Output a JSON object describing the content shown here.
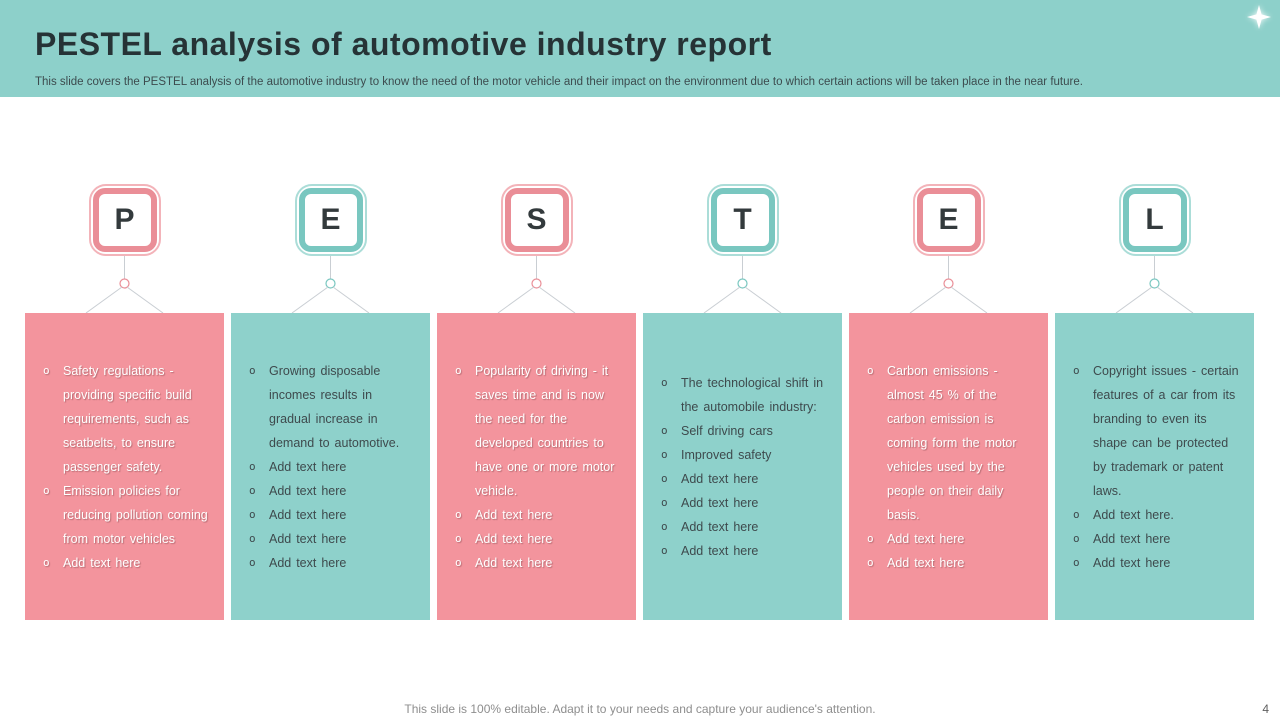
{
  "header": {
    "title": "PESTEL analysis of automotive industry report",
    "subtitle": "This slide covers the PESTEL analysis of the automotive industry to know the need of the motor vehicle and their impact on the environment due to which certain actions will be taken place in the near future."
  },
  "colors": {
    "header_bg": "#8dd0ca",
    "teal_card": "#8ed1cb",
    "pink_card": "#f3949d",
    "pink_accent": "#ea8e97",
    "teal_accent": "#79c7c0",
    "connector_line": "#c9ced3"
  },
  "columns": [
    {
      "letter": "P",
      "accent": "pink",
      "bullets": [
        "Safety regulations - providing specific build requirements, such as seatbelts, to ensure passenger safety.",
        "Emission policies for reducing pollution coming from motor vehicles",
        "Add text here"
      ]
    },
    {
      "letter": "E",
      "accent": "teal",
      "bullets": [
        "Growing disposable incomes results in gradual increase in demand to automotive.",
        "Add text here",
        "Add text here",
        "Add text here",
        "Add text here",
        "Add text here"
      ]
    },
    {
      "letter": "S",
      "accent": "pink",
      "bullets": [
        "Popularity of driving - it saves time and is now the need for the developed countries to have one or more motor vehicle.",
        "Add text here",
        "Add text here",
        "Add text here"
      ]
    },
    {
      "letter": "T",
      "accent": "teal",
      "bullets": [
        "The technological shift in the automobile industry:",
        "Self driving cars",
        "Improved safety",
        "Add text here",
        "Add text here",
        "Add text here",
        "Add text here"
      ]
    },
    {
      "letter": "E",
      "accent": "pink",
      "bullets": [
        "Carbon emissions - almost 45 % of the carbon emission is coming form the motor vehicles used by the people on their daily basis.",
        "Add text here",
        "Add text here"
      ]
    },
    {
      "letter": "L",
      "accent": "teal",
      "bullets": [
        "Copyright issues - certain features of a car from its branding to even its shape can be protected by trademark or patent laws.",
        "Add text here.",
        "Add text here",
        "Add text here"
      ]
    }
  ],
  "footer": {
    "note": "This slide is 100% editable. Adapt it to your needs and capture your audience's attention.",
    "page_number": "4"
  }
}
